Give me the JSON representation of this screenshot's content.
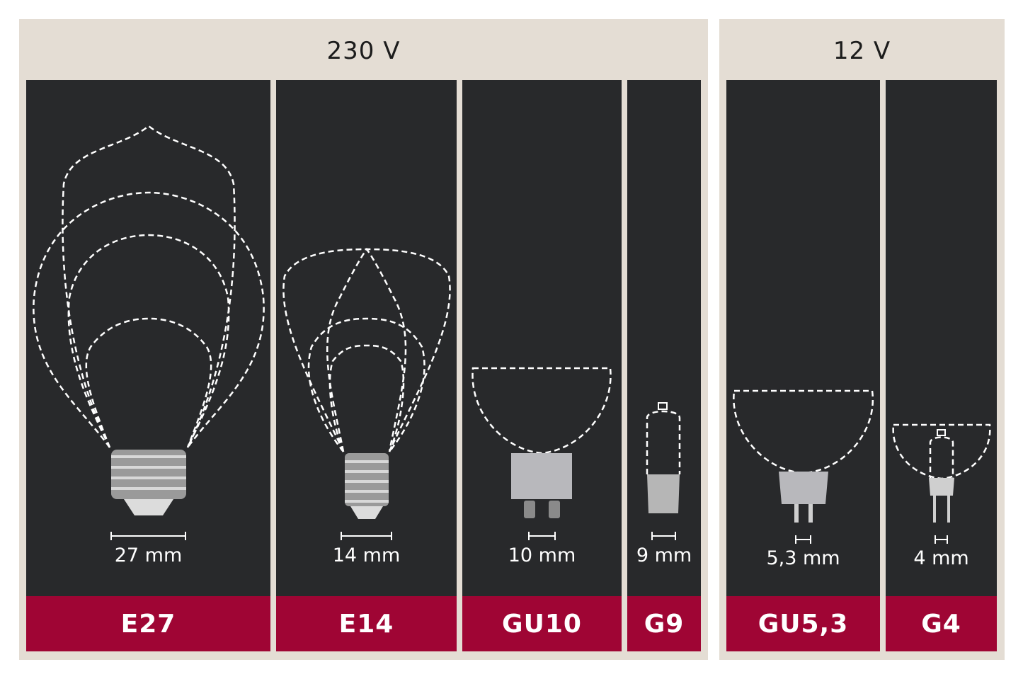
{
  "groups": [
    {
      "voltage": "230 V",
      "sockets": [
        {
          "name": "E27",
          "size": "27 mm"
        },
        {
          "name": "E14",
          "size": "14 mm"
        },
        {
          "name": "GU10",
          "size": "10 mm"
        },
        {
          "name": "G9",
          "size": "9 mm"
        }
      ]
    },
    {
      "voltage": "12 V",
      "sockets": [
        {
          "name": "GU5,3",
          "size": "5,3 mm"
        },
        {
          "name": "G4",
          "size": "4 mm"
        }
      ]
    }
  ],
  "colors": {
    "panel": "#e4ddd4",
    "column": "#28292b",
    "label": "#9f0534",
    "text": "#ffffff"
  }
}
